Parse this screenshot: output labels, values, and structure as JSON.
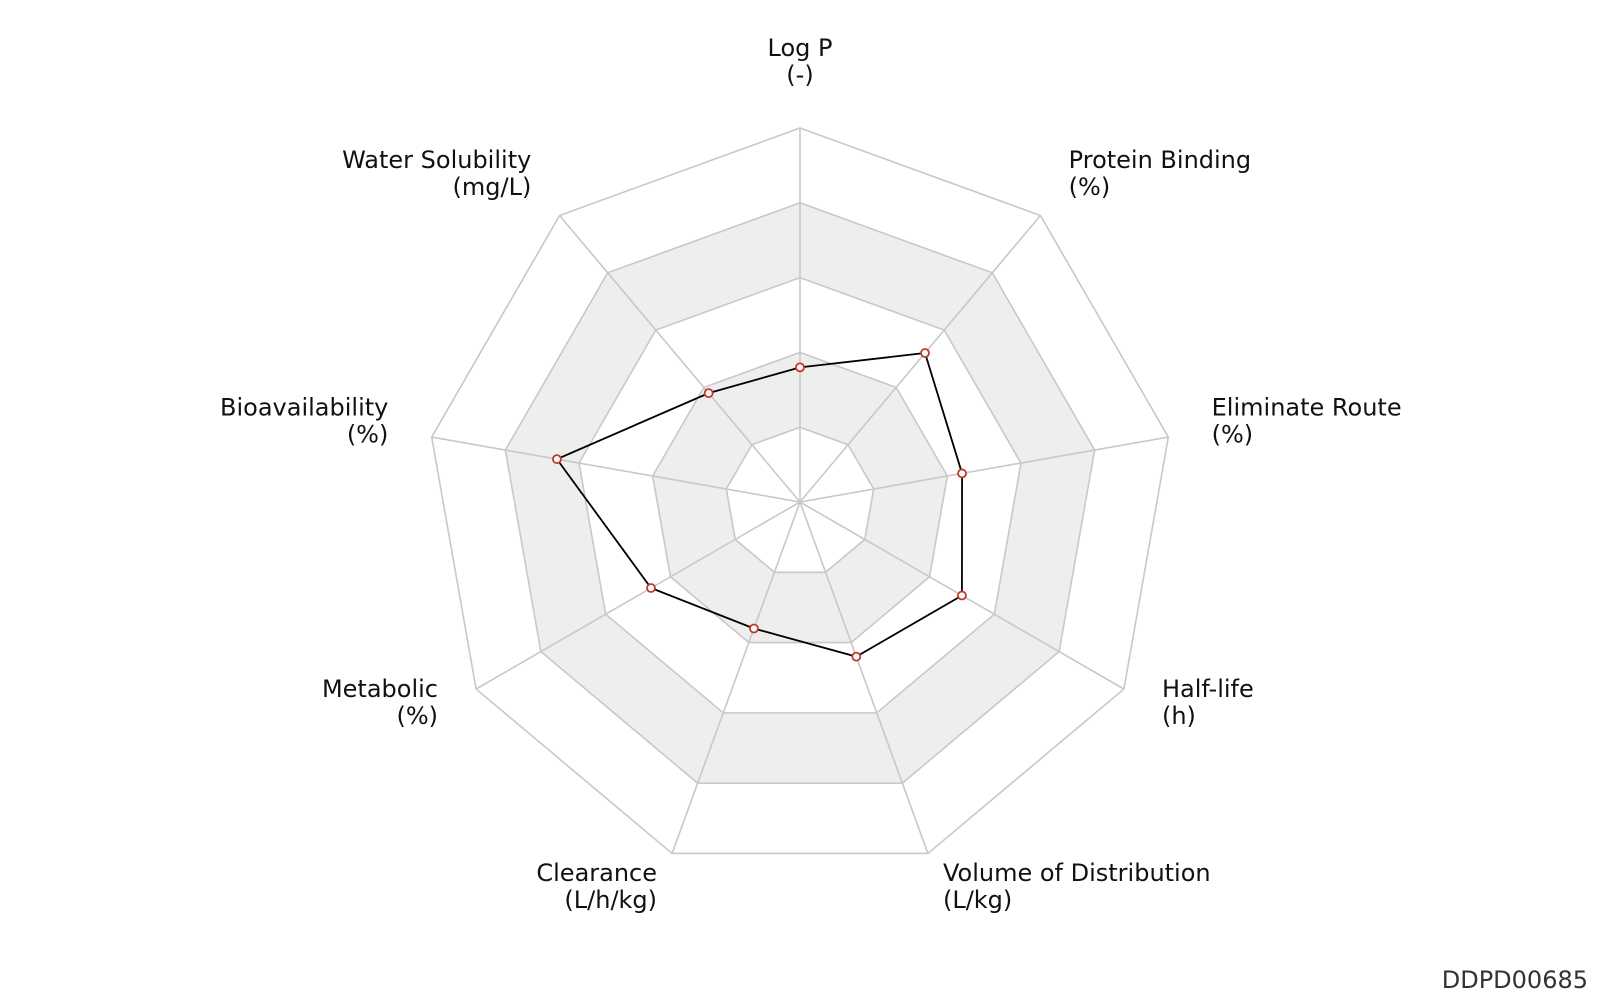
{
  "chart_data": {
    "type": "radar",
    "axes": [
      {
        "name": "Log P",
        "unit": "(-)"
      },
      {
        "name": "Protein Binding",
        "unit": "(%)"
      },
      {
        "name": "Eliminate Route",
        "unit": "(%)"
      },
      {
        "name": "Half-life",
        "unit": "(h)"
      },
      {
        "name": "Volume of Distribution",
        "unit": "(L/kg)"
      },
      {
        "name": "Clearance",
        "unit": "(L/h/kg)"
      },
      {
        "name": "Metabolic",
        "unit": "(%)"
      },
      {
        "name": "Bioavailability",
        "unit": "(%)"
      },
      {
        "name": "Water Solubility",
        "unit": "(mg/L)"
      }
    ],
    "rings": 5,
    "range": [
      0,
      5
    ],
    "values": [
      1.8,
      2.6,
      2.2,
      2.5,
      2.2,
      1.8,
      2.3,
      3.3,
      1.9
    ],
    "colors": {
      "grid": "#c8c8c8",
      "band": "#eeeeee",
      "line": "#000000",
      "marker": "#c0392b"
    }
  },
  "watermark": "DDPD00685"
}
